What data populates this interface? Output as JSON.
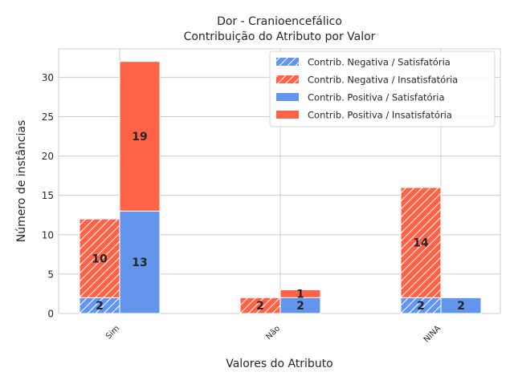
{
  "chart_data": {
    "type": "bar",
    "title": "Dor - Cranioencefálico",
    "subtitle": "Contribuição do Atributo por Valor",
    "xlabel": "Valores do Atributo",
    "ylabel": "Número de instâncias",
    "categories": [
      "Sim",
      "Não",
      "NINA"
    ],
    "ylim": [
      0,
      33.6
    ],
    "yticks": [
      0,
      5,
      10,
      15,
      20,
      25,
      30
    ],
    "grid": true,
    "legend_position": "top-right",
    "colors": {
      "satisfatoria": "#6495ed",
      "insatisfatoria": "#ff6347"
    },
    "groups": [
      {
        "name": "Contrib. Negativa",
        "hatched": true,
        "satisfatoria": [
          2,
          0,
          2
        ],
        "insatisfatoria": [
          10,
          2,
          14
        ]
      },
      {
        "name": "Contrib. Positiva",
        "hatched": false,
        "satisfatoria": [
          13,
          2,
          2
        ],
        "insatisfatoria": [
          19,
          1,
          0
        ]
      }
    ],
    "legend": [
      "Contrib. Negativa / Satisfatória",
      "Contrib. Negativa / Insatisfatória",
      "Contrib. Positiva / Satisfatória",
      "Contrib. Positiva / Insatisfatória"
    ]
  }
}
